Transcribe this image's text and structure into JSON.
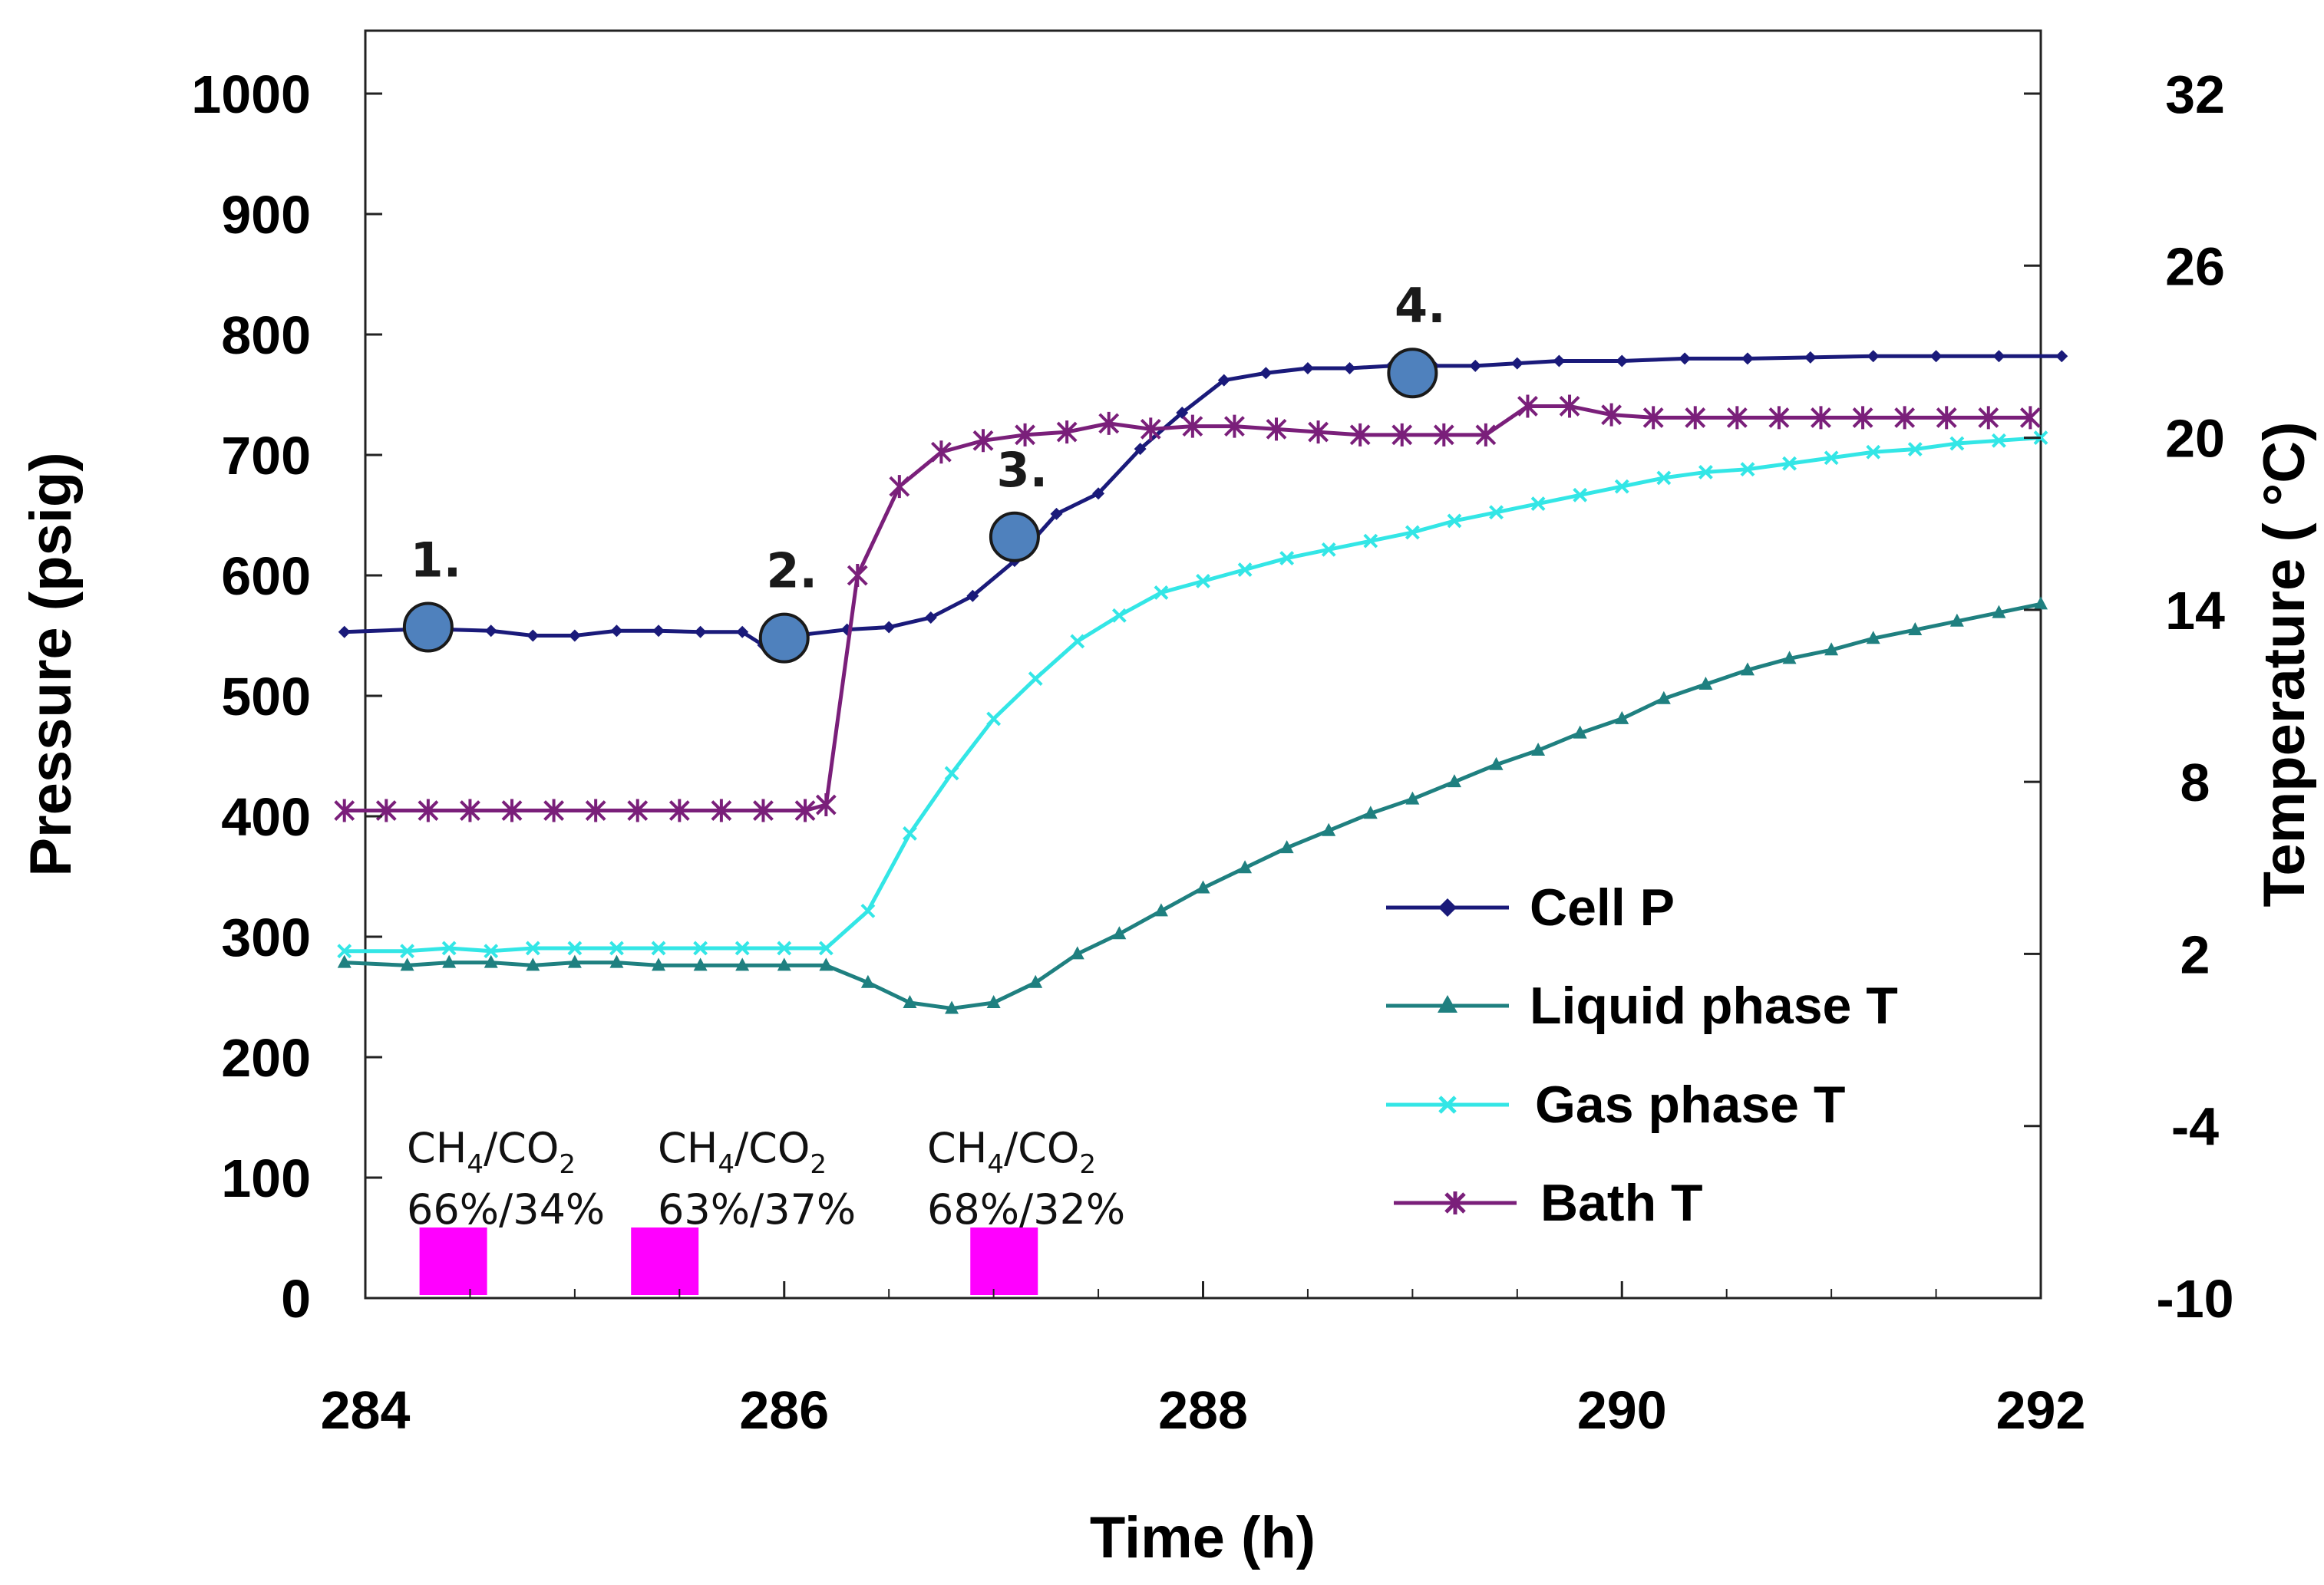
{
  "chart_data": {
    "type": "line",
    "xlabel": "Time (h)",
    "ylabel": "Pressure (psig)",
    "y2label": "Temperature ( °C)",
    "xlim": [
      284,
      292
    ],
    "ylim": [
      0,
      1000
    ],
    "y2lim": [
      -10,
      32
    ],
    "xticks": [
      284,
      286,
      288,
      290,
      292
    ],
    "yticks": [
      0,
      100,
      200,
      300,
      400,
      500,
      600,
      700,
      800,
      900,
      1000
    ],
    "y2ticks": [
      -10,
      -4,
      2,
      8,
      14,
      20,
      26,
      32
    ],
    "grid": false,
    "legend_position": "bottom-right",
    "series": [
      {
        "name": "Cell P",
        "axis": "left",
        "color": "#1a1a7a",
        "marker": "diamond",
        "x": [
          283.9,
          284.2,
          284.4,
          284.6,
          284.8,
          285.0,
          285.2,
          285.4,
          285.6,
          285.8,
          285.9,
          286.1,
          286.3,
          286.5,
          286.7,
          286.9,
          287.1,
          287.3,
          287.5,
          287.7,
          287.9,
          288.1,
          288.3,
          288.5,
          288.7,
          288.9,
          289.1,
          289.3,
          289.5,
          289.7,
          290.0,
          290.3,
          290.6,
          290.9,
          291.2,
          291.5,
          291.8,
          292.1
        ],
        "y": [
          553,
          555,
          555,
          554,
          550,
          550,
          554,
          554,
          553,
          553,
          542,
          551,
          555,
          557,
          565,
          583,
          612,
          651,
          668,
          705,
          735,
          762,
          768,
          772,
          772,
          774,
          774,
          774,
          776,
          778,
          778,
          780,
          780,
          781,
          782,
          782,
          782,
          782
        ]
      },
      {
        "name": "Liquid phase T",
        "axis": "right",
        "color": "#1f8080",
        "marker": "triangle",
        "x": [
          283.9,
          284.2,
          284.4,
          284.6,
          284.8,
          285.0,
          285.2,
          285.4,
          285.6,
          285.8,
          286.0,
          286.2,
          286.4,
          286.6,
          286.8,
          287.0,
          287.2,
          287.4,
          287.6,
          287.8,
          288.0,
          288.2,
          288.4,
          288.6,
          288.8,
          289.0,
          289.2,
          289.4,
          289.6,
          289.8,
          290.0,
          290.2,
          290.4,
          290.6,
          290.8,
          291.0,
          291.2,
          291.4,
          291.6,
          291.8,
          292.0
        ],
        "y": [
          1.7,
          1.6,
          1.7,
          1.7,
          1.6,
          1.7,
          1.7,
          1.6,
          1.6,
          1.6,
          1.6,
          1.6,
          1.0,
          0.3,
          0.1,
          0.3,
          1.0,
          2.0,
          2.7,
          3.5,
          4.3,
          5.0,
          5.7,
          6.3,
          6.9,
          7.4,
          8.0,
          8.6,
          9.1,
          9.7,
          10.2,
          10.9,
          11.4,
          11.9,
          12.3,
          12.6,
          13.0,
          13.3,
          13.6,
          13.9,
          14.2
        ]
      },
      {
        "name": "Gas phase T",
        "axis": "right",
        "color": "#33e6e6",
        "marker": "x",
        "x": [
          283.9,
          284.2,
          284.4,
          284.6,
          284.8,
          285.0,
          285.2,
          285.4,
          285.6,
          285.8,
          286.0,
          286.2,
          286.4,
          286.6,
          286.8,
          287.0,
          287.2,
          287.4,
          287.6,
          287.8,
          288.0,
          288.2,
          288.4,
          288.6,
          288.8,
          289.0,
          289.2,
          289.4,
          289.6,
          289.8,
          290.0,
          290.2,
          290.4,
          290.6,
          290.8,
          291.0,
          291.2,
          291.4,
          291.6,
          291.8,
          292.0
        ],
        "y": [
          2.1,
          2.1,
          2.2,
          2.1,
          2.2,
          2.2,
          2.2,
          2.2,
          2.2,
          2.2,
          2.2,
          2.2,
          3.5,
          6.2,
          8.3,
          10.2,
          11.6,
          12.9,
          13.8,
          14.6,
          15.0,
          15.4,
          15.8,
          16.1,
          16.4,
          16.7,
          17.1,
          17.4,
          17.7,
          18.0,
          18.3,
          18.6,
          18.8,
          18.9,
          19.1,
          19.3,
          19.5,
          19.6,
          19.8,
          19.9,
          20.0
        ]
      },
      {
        "name": "Bath T",
        "axis": "right",
        "color": "#7a1f7a",
        "marker": "asterisk",
        "x": [
          283.9,
          284.1,
          284.3,
          284.5,
          284.7,
          284.9,
          285.1,
          285.3,
          285.5,
          285.7,
          285.9,
          286.1,
          286.2,
          286.35,
          286.55,
          286.75,
          286.95,
          287.15,
          287.35,
          287.55,
          287.75,
          287.95,
          288.15,
          288.35,
          288.55,
          288.75,
          288.95,
          289.15,
          289.35,
          289.55,
          289.75,
          289.95,
          290.15,
          290.35,
          290.55,
          290.75,
          290.95,
          291.15,
          291.35,
          291.55,
          291.75,
          291.95
        ],
        "y": [
          7.0,
          7.0,
          7.0,
          7.0,
          7.0,
          7.0,
          7.0,
          7.0,
          7.0,
          7.0,
          7.0,
          7.0,
          7.2,
          15.2,
          18.3,
          19.5,
          19.9,
          20.1,
          20.2,
          20.5,
          20.3,
          20.4,
          20.4,
          20.3,
          20.2,
          20.1,
          20.1,
          20.1,
          20.1,
          21.1,
          21.1,
          20.8,
          20.7,
          20.7,
          20.7,
          20.7,
          20.7,
          20.7,
          20.7,
          20.7,
          20.7,
          20.7
        ]
      }
    ],
    "labeled_points": [
      {
        "label": "1.",
        "x": 284.3,
        "y": 557
      },
      {
        "label": "2.",
        "x": 286.0,
        "y": 548
      },
      {
        "label": "3.",
        "x": 287.1,
        "y": 632
      },
      {
        "label": "4.",
        "x": 289.0,
        "y": 768
      }
    ],
    "annotations": [
      {
        "x": 284.5,
        "composition": "66%/34%"
      },
      {
        "x": 285.5,
        "composition": "63%/37%"
      },
      {
        "x": 287.1,
        "composition": "68%/32%"
      }
    ],
    "annotation_label": {
      "ch": "CH",
      "ch_sub": "4",
      "co": "/CO",
      "co_sub": "2"
    },
    "injection_markers": [
      284.42,
      285.43,
      287.05
    ],
    "injection_color": "#ff00ff",
    "marker_fill": "#4f81bd"
  }
}
